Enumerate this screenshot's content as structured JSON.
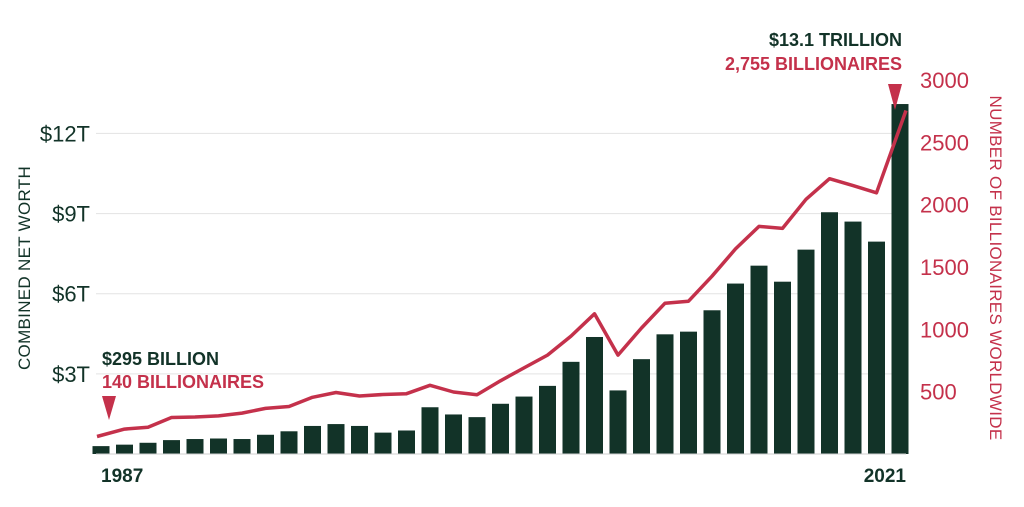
{
  "chart_data": {
    "type": "bar+line",
    "colors": {
      "bars": "#123328",
      "line": "#c4314b",
      "grid": "#e3e3e3",
      "axis": "#cfcfcf"
    },
    "y_left": {
      "label": "COMBINED NET WORTH",
      "ylim": [
        0,
        14
      ],
      "ticks": [
        3,
        6,
        9,
        12
      ],
      "tick_labels": [
        "$3T",
        "$6T",
        "$9T",
        "$12T"
      ]
    },
    "y_right": {
      "label": "NUMBER OF BILLIONAIRES WORLDWIDE",
      "ylim": [
        0,
        3000
      ],
      "ticks": [
        500,
        1000,
        1500,
        2000,
        2500,
        3000
      ],
      "tick_labels": [
        "500",
        "1000",
        "1500",
        "2000",
        "2500",
        "3000"
      ]
    },
    "x": [
      1987,
      1988,
      1989,
      1990,
      1991,
      1992,
      1993,
      1994,
      1995,
      1996,
      1997,
      1998,
      1999,
      2000,
      2001,
      2002,
      2003,
      2004,
      2005,
      2006,
      2007,
      2008,
      2009,
      2010,
      2011,
      2012,
      2013,
      2014,
      2015,
      2016,
      2017,
      2018,
      2019,
      2020,
      2021
    ],
    "x_tick_labels": {
      "first": "1987",
      "last": "2021"
    },
    "series": [
      {
        "values": [
          0.295,
          0.35,
          0.42,
          0.52,
          0.56,
          0.58,
          0.56,
          0.72,
          0.85,
          1.05,
          1.12,
          1.05,
          0.8,
          0.88,
          1.75,
          1.48,
          1.38,
          1.88,
          2.15,
          2.55,
          3.45,
          4.38,
          2.38,
          3.55,
          4.48,
          4.58,
          5.38,
          6.38,
          7.05,
          6.45,
          7.65,
          9.05,
          8.7,
          7.95,
          13.1
        ]
      },
      {
        "values": [
          140,
          200,
          215,
          293,
          297,
          306,
          328,
          366,
          381,
          455,
          493,
          465,
          477,
          484,
          551,
          497,
          476,
          587,
          691,
          793,
          946,
          1125,
          793,
          1011,
          1210,
          1226,
          1426,
          1645,
          1826,
          1810,
          2043,
          2208,
          2153,
          2095,
          2755
        ]
      }
    ],
    "annotations": [
      {
        "value": "$295 BILLION",
        "subvalue": "140 BILLIONAIRES",
        "year": "1987"
      },
      {
        "value": "$13.1 TRILLION",
        "subvalue": "2,755 BILLIONAIRES",
        "year": "2021"
      }
    ]
  }
}
